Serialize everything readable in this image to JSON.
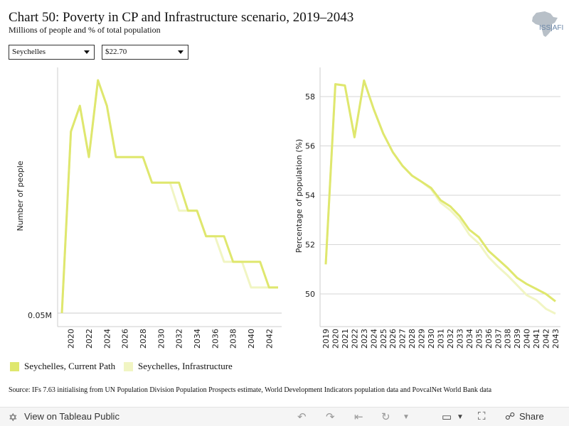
{
  "header": {
    "title": "Chart 50: Poverty in CP and Infrastructure scenario, 2019–2043",
    "subtitle": "Millions of people and % of total population"
  },
  "logo": {
    "text": "ISS|AFI",
    "icon": "africa-map-icon"
  },
  "filters": {
    "country": "Seychelles",
    "poverty_line": "$22.70"
  },
  "legend": {
    "items": [
      {
        "label": "Seychelles, Current Path",
        "color": "#dfe76e"
      },
      {
        "label": "Seychelles, Infrastructure",
        "color": "#f1f5c3"
      }
    ]
  },
  "source": "Source: IFs 7.63 initialising from UN Population Division Population Prospects estimate, World Development Indicators population data and PovcalNet World Bank data",
  "footer": {
    "view_label": "View on Tableau Public",
    "share_label": "Share",
    "icons": [
      "undo-icon",
      "redo-icon",
      "revert-icon",
      "refresh-icon",
      "download-icon",
      "fullscreen-icon",
      "share-icon"
    ]
  },
  "chart_data": [
    {
      "type": "line",
      "ylabel": "Number of people",
      "y_tick_labels": [
        "0.05M"
      ],
      "x_tick_labels": [
        "2020",
        "2022",
        "2024",
        "2026",
        "2028",
        "2030",
        "2032",
        "2034",
        "2036",
        "2038",
        "2040",
        "2042"
      ],
      "x": [
        2019,
        2020,
        2021,
        2022,
        2023,
        2024,
        2025,
        2026,
        2027,
        2028,
        2029,
        2030,
        2031,
        2032,
        2033,
        2034,
        2035,
        2036,
        2037,
        2038,
        2039,
        2040,
        2041,
        2042,
        2043
      ],
      "ylim_relative": [
        0,
        1
      ],
      "note_values": "relative units, only one y tick labelled",
      "series": [
        {
          "name": "Seychelles, Current Path",
          "color": "#dfe76e",
          "values": [
            0.0,
            0.78,
            0.89,
            0.67,
            1.0,
            0.89,
            0.67,
            0.67,
            0.67,
            0.67,
            0.56,
            0.56,
            0.56,
            0.56,
            0.44,
            0.44,
            0.33,
            0.33,
            0.33,
            0.22,
            0.22,
            0.22,
            0.22,
            0.11,
            0.11
          ]
        },
        {
          "name": "Seychelles, Infrastructure",
          "color": "#f1f5c3",
          "values": [
            0.0,
            0.78,
            0.89,
            0.67,
            1.0,
            0.89,
            0.67,
            0.67,
            0.67,
            0.67,
            0.56,
            0.56,
            0.56,
            0.44,
            0.44,
            0.44,
            0.33,
            0.33,
            0.22,
            0.22,
            0.22,
            0.11,
            0.11,
            0.11,
            0.11
          ]
        }
      ]
    },
    {
      "type": "line",
      "ylabel": "Percentage of population (%)",
      "yticks": [
        50,
        52,
        54,
        56,
        58
      ],
      "ylim": [
        48.8,
        59.3
      ],
      "grid": true,
      "x": [
        2019,
        2020,
        2021,
        2022,
        2023,
        2024,
        2025,
        2026,
        2027,
        2028,
        2029,
        2030,
        2031,
        2032,
        2033,
        2034,
        2035,
        2036,
        2037,
        2038,
        2039,
        2040,
        2041,
        2042,
        2043
      ],
      "x_tick_labels": [
        "2019",
        "2020",
        "2021",
        "2022",
        "2023",
        "2024",
        "2025",
        "2026",
        "2027",
        "2028",
        "2029",
        "2030",
        "2031",
        "2032",
        "2033",
        "2034",
        "2035",
        "2036",
        "2037",
        "2038",
        "2039",
        "2040",
        "2041",
        "2042",
        "2043"
      ],
      "series": [
        {
          "name": "Seychelles, Current Path",
          "color": "#dfe76e",
          "values": [
            51.2,
            58.5,
            58.45,
            56.35,
            58.65,
            57.5,
            56.5,
            55.75,
            55.2,
            54.8,
            54.55,
            54.3,
            53.8,
            53.55,
            53.15,
            52.6,
            52.3,
            51.75,
            51.4,
            51.05,
            50.65,
            50.4,
            50.2,
            50.0,
            49.7
          ]
        },
        {
          "name": "Seychelles, Infrastructure",
          "color": "#f1f5c3",
          "values": [
            51.2,
            58.5,
            58.45,
            56.35,
            58.65,
            57.5,
            56.5,
            55.75,
            55.2,
            54.8,
            54.55,
            54.25,
            53.7,
            53.4,
            53.0,
            52.4,
            52.05,
            51.5,
            51.1,
            50.75,
            50.35,
            49.95,
            49.75,
            49.4,
            49.2
          ]
        }
      ]
    }
  ]
}
